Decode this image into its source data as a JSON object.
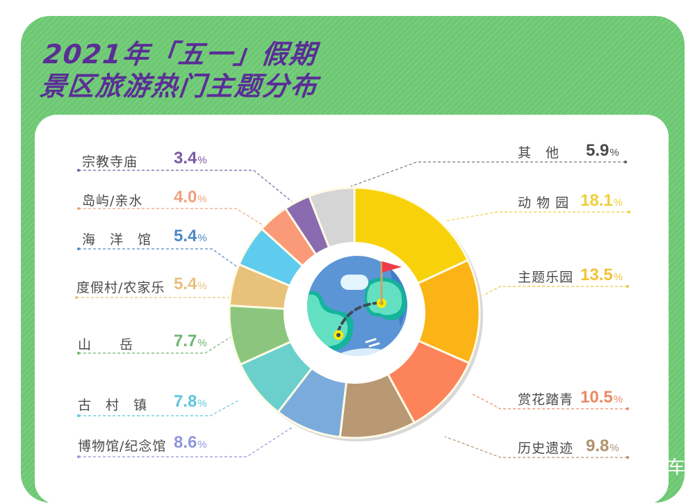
{
  "title": {
    "line1": "2021年「五一」假期",
    "line2": "景区旅游热门主题分布"
  },
  "corner_text": "车",
  "colors": {
    "panel_green": "#6cc872",
    "title_purple": "#5a2e96",
    "label_gray": "#4a4a4a"
  },
  "chart_data": {
    "type": "pie",
    "subtype": "donut",
    "title": "2021年「五一」假期景区旅游热门主题分布",
    "unit": "%",
    "start_angle_deg": 0,
    "direction": "clockwise",
    "categories": [
      "动物园",
      "主题乐园",
      "赏花踏青",
      "历史遗迹",
      "博物馆/纪念馆",
      "古村镇",
      "山岳",
      "度假村/农家乐",
      "海洋馆",
      "岛屿/亲水",
      "宗教寺庙",
      "其他"
    ],
    "values": [
      18.1,
      13.5,
      10.5,
      9.8,
      8.6,
      7.8,
      7.7,
      5.4,
      5.4,
      4.0,
      3.4,
      5.9
    ],
    "segment_colors": [
      "#f7d20a",
      "#fbb416",
      "#fd835a",
      "#b99874",
      "#7aabdb",
      "#6bd0cb",
      "#8cc67e",
      "#e8c17a",
      "#5fcbee",
      "#fa9a78",
      "#8a6bb0",
      "#d5d5d5"
    ],
    "center_icon": "globe-with-flag-icon"
  },
  "legend": [
    {
      "label": "其　他",
      "value": "5.9",
      "sign": "%",
      "color": "#4a4a4a",
      "side": "right"
    },
    {
      "label": "动 物 园",
      "value": "18.1",
      "sign": "%",
      "color": "#f0cf3a",
      "side": "right"
    },
    {
      "label": "主题乐园",
      "value": "13.5",
      "sign": "%",
      "color": "#f1c236",
      "side": "right"
    },
    {
      "label": "赏花踏青",
      "value": "10.5",
      "sign": "%",
      "color": "#e98a63",
      "side": "right"
    },
    {
      "label": "历史遗迹",
      "value": "9.8",
      "sign": "%",
      "color": "#b0916c",
      "side": "right"
    },
    {
      "label": "宗教寺庙",
      "value": "3.4",
      "sign": "%",
      "color": "#7a5aa6",
      "side": "left"
    },
    {
      "label": "岛屿/亲水",
      "value": "4.0",
      "sign": "%",
      "color": "#f0a07e",
      "side": "left"
    },
    {
      "label": "海　洋　馆",
      "value": "5.4",
      "sign": "%",
      "color": "#4f88c6",
      "side": "left"
    },
    {
      "label": "度假村/农家乐",
      "value": "5.4",
      "sign": "%",
      "color": "#e6c07c",
      "side": "left"
    },
    {
      "label": "山　　岳",
      "value": "7.7",
      "sign": "%",
      "color": "#6db56f",
      "side": "left"
    },
    {
      "label": "古　村　镇",
      "value": "7.8",
      "sign": "%",
      "color": "#5ec5de",
      "side": "left"
    },
    {
      "label": "博物馆/纪念馆",
      "value": "8.6",
      "sign": "%",
      "color": "#8f97d8",
      "side": "left"
    }
  ]
}
